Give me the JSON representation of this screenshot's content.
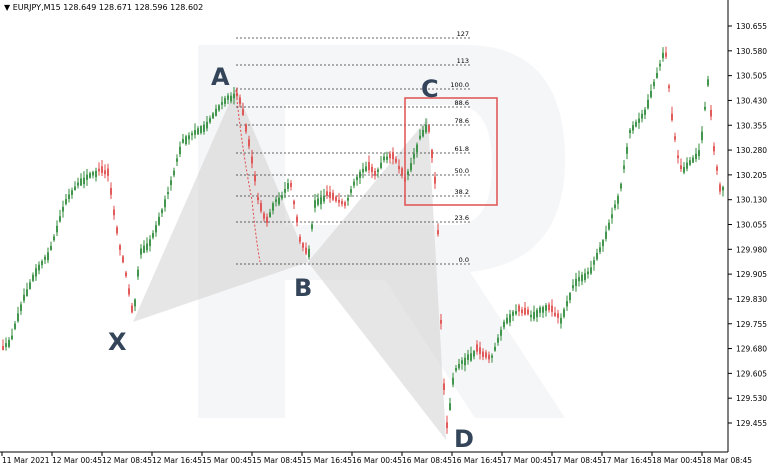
{
  "window": {
    "symbol": "EURJPY,M15",
    "ohlc": "128.649 128.671 128.596 128.602"
  },
  "chart_data": {
    "type": "candlestick",
    "y_axis_ticks": [
      "130.655",
      "130.580",
      "130.505",
      "130.430",
      "130.355",
      "130.280",
      "130.205",
      "130.130",
      "130.055",
      "129.980",
      "129.905",
      "129.830",
      "129.755",
      "129.680",
      "129.605",
      "129.530",
      "129.455"
    ],
    "x_axis_labels": [
      "11 Mar 2021",
      "12 Mar 00:45",
      "12 Mar 08:45",
      "12 Mar 16:45",
      "15 Mar 00:45",
      "15 Mar 08:45",
      "15 Mar 16:45",
      "16 Mar 00:45",
      "16 Mar 08:45",
      "16 Mar 16:45",
      "17 Mar 00:45",
      "17 Mar 08:45",
      "17 Mar 16:45",
      "18 Mar 00:45",
      "18 Mar 08:45"
    ],
    "fibonacci_levels": [
      "127",
      "113",
      "100.0",
      "88.6",
      "78.6",
      "61.8",
      "50.0",
      "38.2",
      "23.6",
      "0.0"
    ],
    "pattern_points": [
      "X",
      "A",
      "B",
      "C",
      "D"
    ],
    "colors": {
      "bull": "#2e8b3a",
      "bear": "#e04a4a",
      "triangle": "#e6e6e6",
      "box": "#e05050"
    }
  }
}
